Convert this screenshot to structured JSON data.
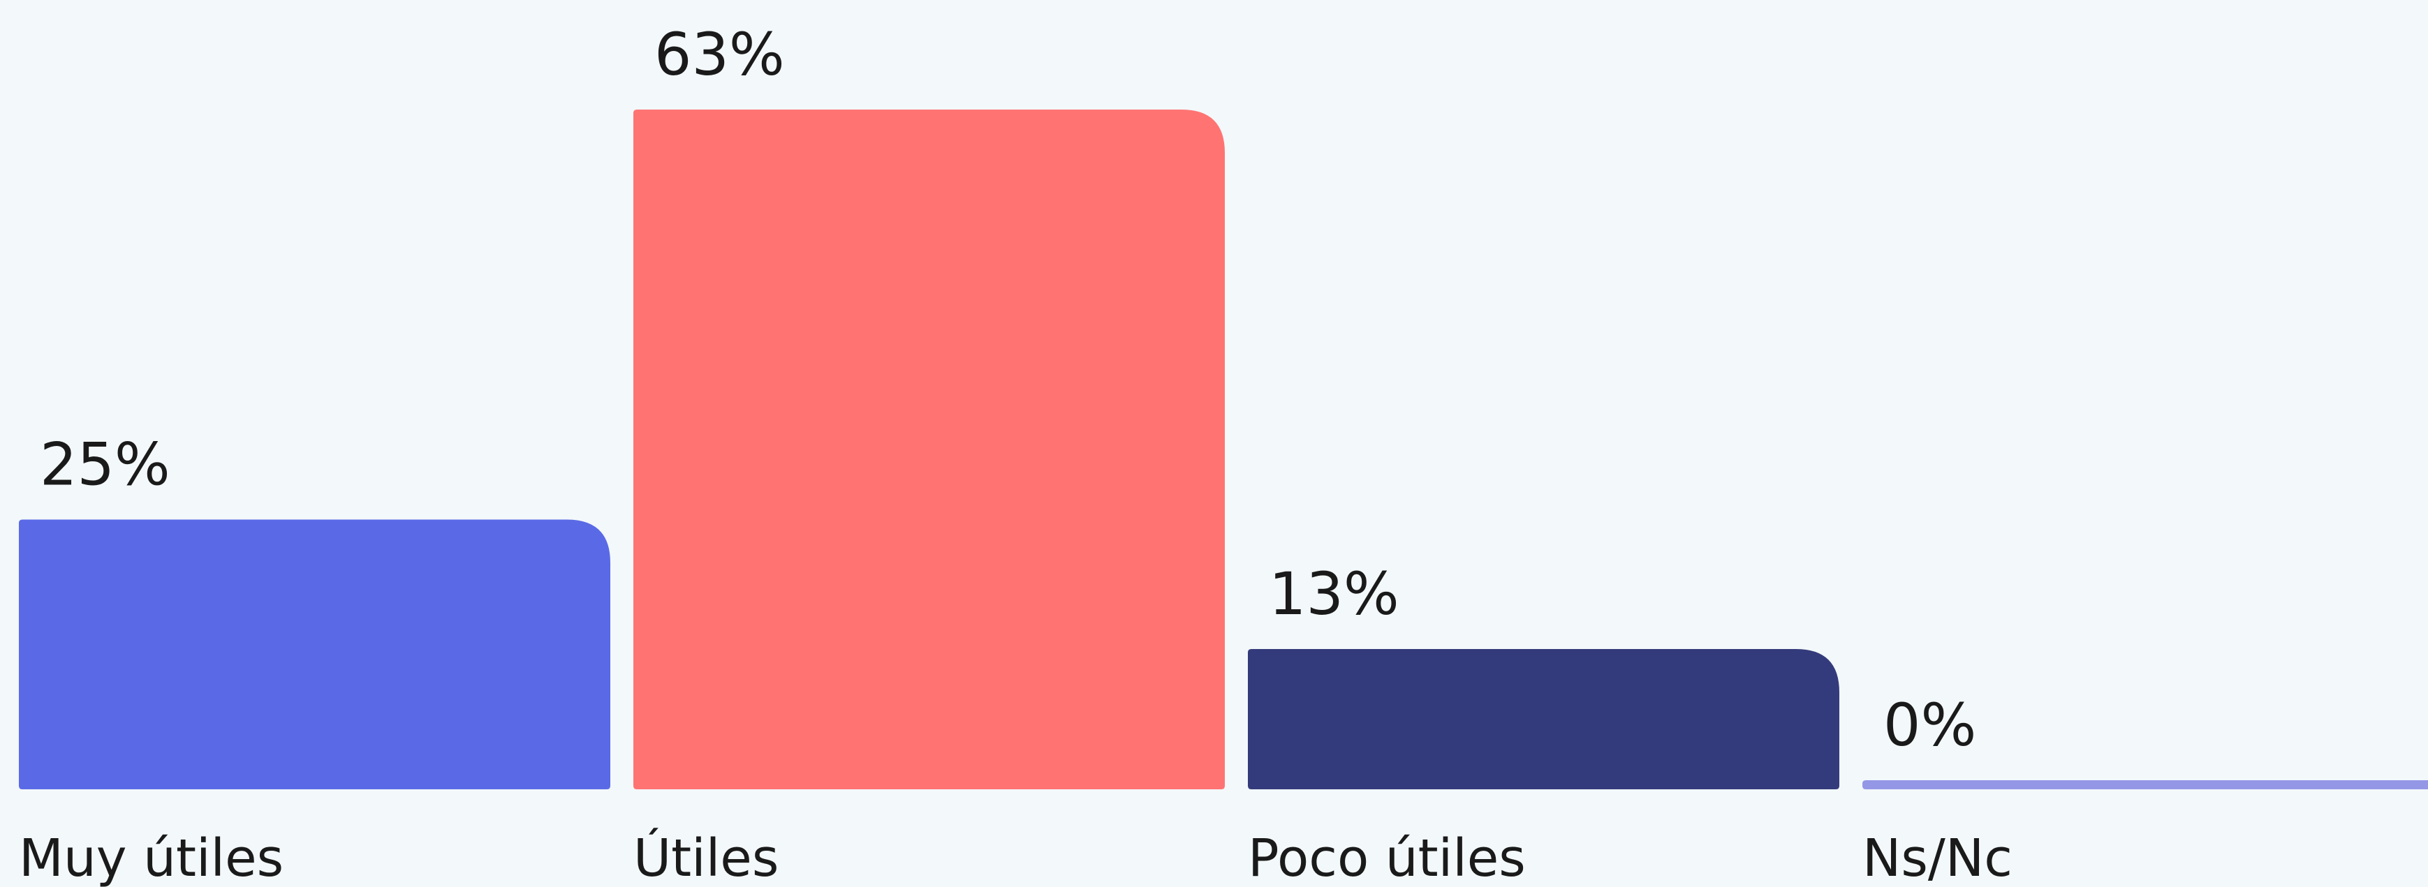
{
  "chart_data": {
    "type": "bar",
    "categories": [
      "Muy útiles",
      "Útiles",
      "Poco útiles",
      "Ns/Nc"
    ],
    "values": [
      25,
      63,
      13,
      0
    ],
    "value_labels": [
      "25%",
      "63%",
      "13%",
      "0%"
    ],
    "colors": [
      "#5a6ae6",
      "#ff7473",
      "#343b7c",
      "#9497e6"
    ]
  }
}
